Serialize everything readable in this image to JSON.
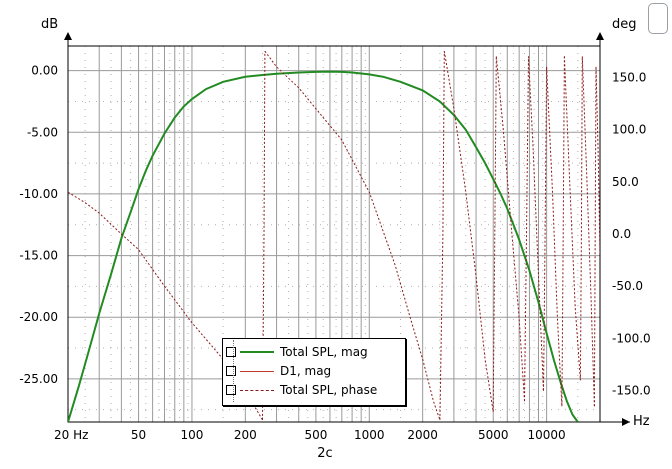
{
  "window": {
    "sub_caption": "2c"
  },
  "legend": {
    "items": [
      {
        "label": "Total SPL, mag",
        "color": "#228B22",
        "style": "solid"
      },
      {
        "label": "D1, mag",
        "color": "#C0392B",
        "style": "solid"
      },
      {
        "label": "Total SPL, phase",
        "color": "#8B1A1A",
        "style": "dashed"
      }
    ]
  },
  "chart_data": {
    "type": "line",
    "title": "",
    "xlabel": "Hz",
    "ylabel": "dB",
    "y2label": "deg",
    "xscale": "log",
    "xlim": [
      20,
      20000
    ],
    "ylim": [
      -28.5,
      2.0
    ],
    "y2lim": [
      -180,
      180
    ],
    "grid": true,
    "legend_position": "bottom-center",
    "x_tick_labels": [
      {
        "value": 20,
        "label": "20 Hz"
      },
      {
        "value": 50,
        "label": "50"
      },
      {
        "value": 100,
        "label": "100"
      },
      {
        "value": 200,
        "label": "200"
      },
      {
        "value": 500,
        "label": "500"
      },
      {
        "value": 1000,
        "label": "1000"
      },
      {
        "value": 2000,
        "label": "2000"
      },
      {
        "value": 5000,
        "label": "5000"
      },
      {
        "value": 10000,
        "label": "10000"
      }
    ],
    "y_ticks": [
      0,
      -5,
      -10,
      -15,
      -20,
      -25
    ],
    "y_tick_labels": [
      "0.00",
      "-5.00",
      "-10.00",
      "-15.00",
      "-20.00",
      "-25.00"
    ],
    "y2_ticks": [
      150,
      100,
      50,
      0,
      -50,
      -100,
      -150
    ],
    "y2_tick_labels": [
      "150.0",
      "100.0",
      "50.0",
      "0.0",
      "-50.0",
      "-100.0",
      "-150.0"
    ],
    "series": [
      {
        "name": "Total SPL, mag",
        "axis": "left",
        "x": [
          20,
          23,
          26,
          30,
          35,
          40,
          45,
          50,
          55,
          60,
          70,
          80,
          90,
          100,
          120,
          150,
          200,
          250,
          300,
          400,
          500,
          600,
          700,
          800,
          1000,
          1200,
          1500,
          2000,
          2500,
          3000,
          3500,
          4000,
          4500,
          5000,
          5500,
          6000,
          7000,
          8000,
          9000,
          10000,
          11000,
          12000,
          13000,
          14000,
          15000
        ],
        "y": [
          -28.5,
          -25.6,
          -22.9,
          -19.7,
          -16.5,
          -13.6,
          -11.5,
          -9.6,
          -8.1,
          -6.9,
          -5.1,
          -3.8,
          -2.9,
          -2.3,
          -1.5,
          -0.9,
          -0.5,
          -0.35,
          -0.25,
          -0.15,
          -0.1,
          -0.08,
          -0.1,
          -0.15,
          -0.3,
          -0.5,
          -0.9,
          -1.6,
          -2.5,
          -3.6,
          -4.8,
          -6.2,
          -7.5,
          -8.8,
          -10.0,
          -11.2,
          -13.7,
          -16.2,
          -18.8,
          -21.3,
          -23.5,
          -25.3,
          -26.8,
          -27.9,
          -28.5
        ]
      },
      {
        "name": "D1, mag",
        "axis": "left",
        "x": [],
        "y": []
      },
      {
        "name": "Total SPL, phase",
        "axis": "right",
        "segments": [
          {
            "x": [
              20,
              25,
              30,
              40,
              50,
              70,
              100,
              150,
              200,
              250
            ],
            "y": [
              40,
              30,
              20,
              0,
              -15,
              -50,
              -85,
              -120,
              -150,
              -178
            ]
          },
          {
            "x": [
              250,
              255,
              258
            ],
            "y": [
              -178,
              0,
              175
            ]
          },
          {
            "x": [
              258,
              300,
              400,
              500,
              700,
              1000,
              1400,
              1700,
              2000,
              2300,
              2500
            ],
            "y": [
              175,
              160,
              140,
              120,
              90,
              40,
              -30,
              -80,
              -120,
              -160,
              -178
            ]
          },
          {
            "x": [
              2500,
              2600,
              2650
            ],
            "y": [
              -178,
              0,
              175
            ]
          },
          {
            "x": [
              2650,
              3000,
              3500,
              4000,
              4500,
              5000
            ],
            "y": [
              175,
              120,
              40,
              -40,
              -120,
              -170
            ]
          },
          {
            "x": [
              5000,
              5100,
              5200
            ],
            "y": [
              -170,
              0,
              170
            ]
          },
          {
            "x": [
              5200,
              5700,
              6300,
              7000,
              7500
            ],
            "y": [
              170,
              100,
              10,
              -80,
              -160
            ]
          },
          {
            "x": [
              7500,
              7700,
              7900
            ],
            "y": [
              -160,
              0,
              170
            ]
          },
          {
            "x": [
              7900,
              8400,
              9000,
              9600
            ],
            "y": [
              170,
              80,
              -40,
              -150
            ]
          },
          {
            "x": [
              9600,
              9800,
              10000
            ],
            "y": [
              -150,
              0,
              160
            ]
          },
          {
            "x": [
              10000,
              10800,
              11500,
              12200
            ],
            "y": [
              160,
              40,
              -80,
              -165
            ]
          },
          {
            "x": [
              12200,
              12400,
              12600
            ],
            "y": [
              -165,
              0,
              170
            ]
          },
          {
            "x": [
              12600,
              13500,
              14500,
              15500
            ],
            "y": [
              170,
              50,
              -70,
              -140
            ]
          },
          {
            "x": [
              15500,
              15700,
              15900
            ],
            "y": [
              -140,
              0,
              170
            ]
          },
          {
            "x": [
              15900,
              16800,
              17800,
              18600
            ],
            "y": [
              170,
              60,
              -60,
              -165
            ]
          },
          {
            "x": [
              18600,
              18800,
              19000
            ],
            "y": [
              -165,
              0,
              160
            ]
          },
          {
            "x": [
              19000,
              19500,
              20000
            ],
            "y": [
              160,
              80,
              -20
            ]
          }
        ]
      }
    ]
  }
}
